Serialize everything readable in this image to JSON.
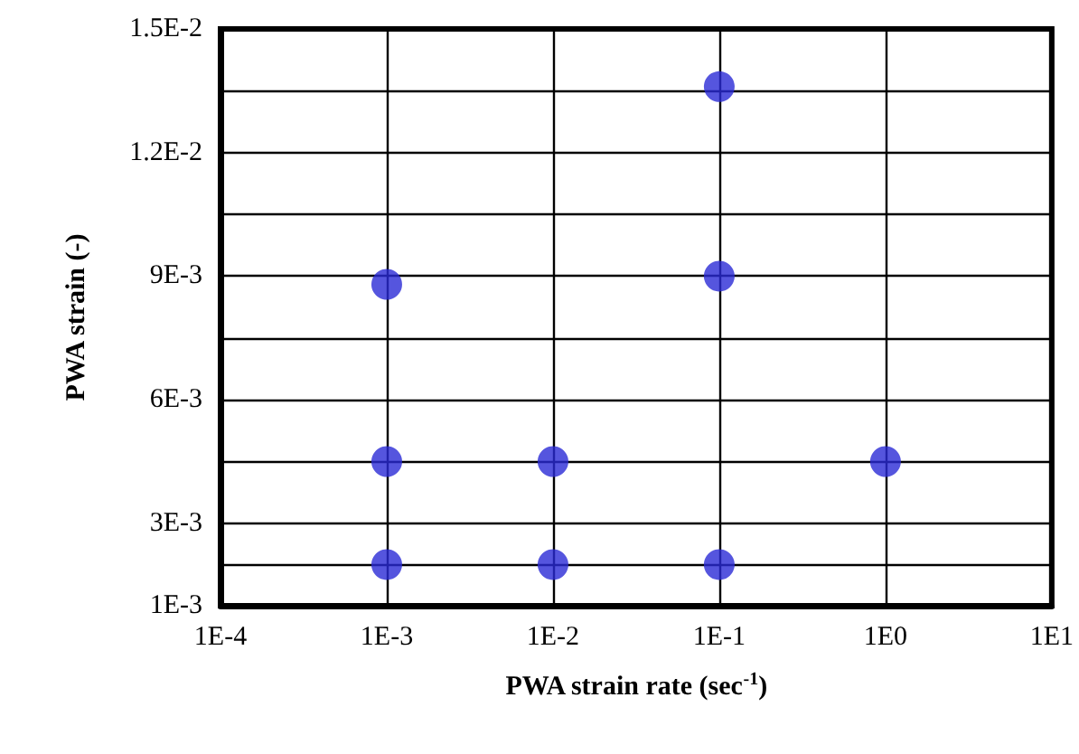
{
  "chart_data": {
    "type": "scatter",
    "xlabel": "PWA strain rate (sec$^{-1}$)",
    "ylabel": "PWA strain (-)",
    "x": [
      0.001,
      0.01,
      0.1,
      0.001,
      0.01,
      1,
      0.001,
      0.1,
      0.1
    ],
    "values": [
      0.002,
      0.002,
      0.002,
      0.0045,
      0.0045,
      0.0045,
      0.0088,
      0.009,
      0.0136
    ],
    "color": "#2b2bd6",
    "marker": "circle",
    "grid": true,
    "log": "x",
    "xlim": [
      0.0001,
      10
    ],
    "xticks": [
      {
        "value": 0.0001,
        "label": "1E-4"
      },
      {
        "value": 0.001,
        "label": "1E-3"
      },
      {
        "value": 0.01,
        "label": "1E-2"
      },
      {
        "value": 0.1,
        "label": "1E-1"
      },
      {
        "value": 1,
        "label": "1E0"
      },
      {
        "value": 10,
        "label": "1E1"
      }
    ],
    "ylim": [
      0.001,
      0.015
    ],
    "yticks": [
      {
        "value": 0.001,
        "label": "1E-3"
      },
      {
        "value": 0.002,
        "label": null
      },
      {
        "value": 0.003,
        "label": "3E-3"
      },
      {
        "value": 0.0045,
        "label": null
      },
      {
        "value": 0.006,
        "label": "6E-3"
      },
      {
        "value": 0.0075,
        "label": null
      },
      {
        "value": 0.009,
        "label": "9E-3"
      },
      {
        "value": 0.0105,
        "label": null
      },
      {
        "value": 0.012,
        "label": "1.2E-2"
      },
      {
        "value": 0.0135,
        "label": null
      },
      {
        "value": 0.015,
        "label": "1.5E-2"
      }
    ]
  }
}
